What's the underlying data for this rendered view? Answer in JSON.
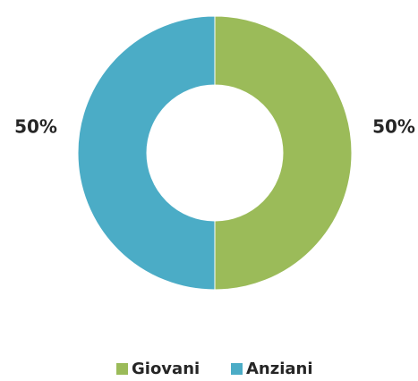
{
  "chart_data": {
    "type": "donut",
    "categories": [
      "Giovani",
      "Anziani"
    ],
    "values": [
      50,
      50
    ],
    "value_labels": [
      "50%",
      "50%"
    ],
    "colors": [
      "#9bbb59",
      "#4bacc6"
    ],
    "legend": "bottom"
  }
}
